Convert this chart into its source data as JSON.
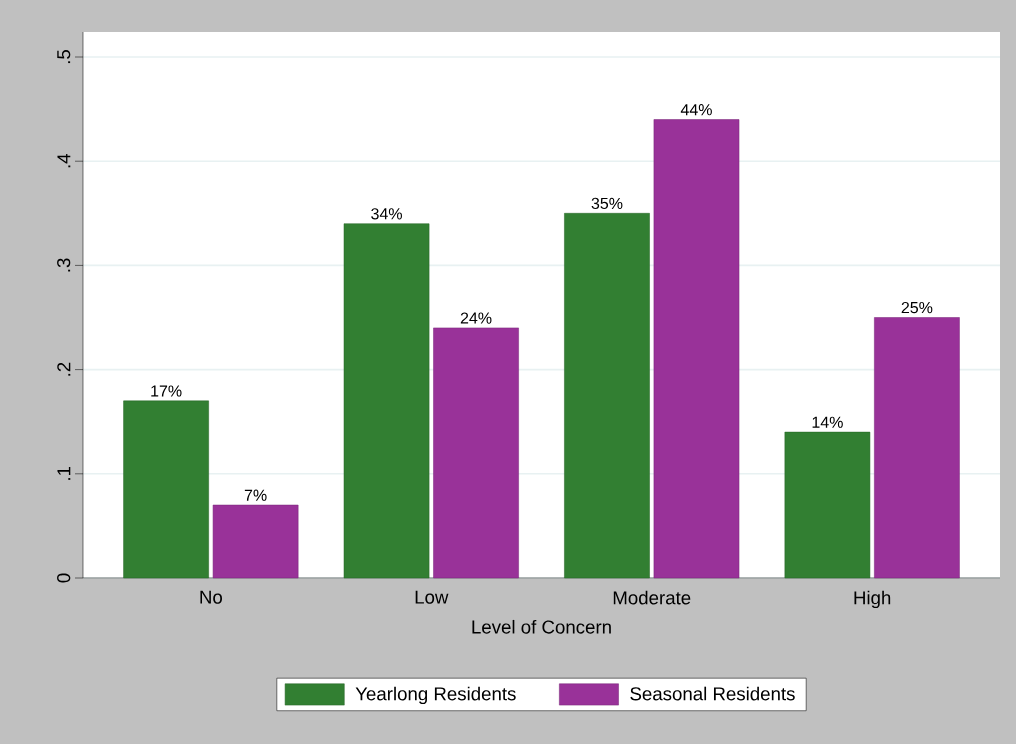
{
  "chart_data": {
    "type": "bar",
    "xlabel": "Level of Concern",
    "categories": [
      "No",
      "Low",
      "Moderate",
      "High"
    ],
    "series": [
      {
        "name": "Yearlong Residents",
        "color": "#327f32",
        "values": [
          0.17,
          0.34,
          0.35,
          0.14
        ],
        "value_labels": [
          "17%",
          "34%",
          "35%",
          "14%"
        ]
      },
      {
        "name": "Seasonal Residents",
        "color": "#993299",
        "values": [
          0.07,
          0.24,
          0.44,
          0.25
        ],
        "value_labels": [
          "7%",
          "24%",
          "44%",
          "25%"
        ]
      }
    ],
    "ylim": [
      0,
      0.524
    ],
    "yticks": [
      {
        "value": 0,
        "label": "0"
      },
      {
        "value": 0.1,
        "label": ".1"
      },
      {
        "value": 0.2,
        "label": ".2"
      },
      {
        "value": 0.3,
        "label": ".3"
      },
      {
        "value": 0.4,
        "label": ".4"
      },
      {
        "value": 0.5,
        "label": ".5"
      }
    ],
    "grid": "y",
    "legend": "bottom"
  }
}
